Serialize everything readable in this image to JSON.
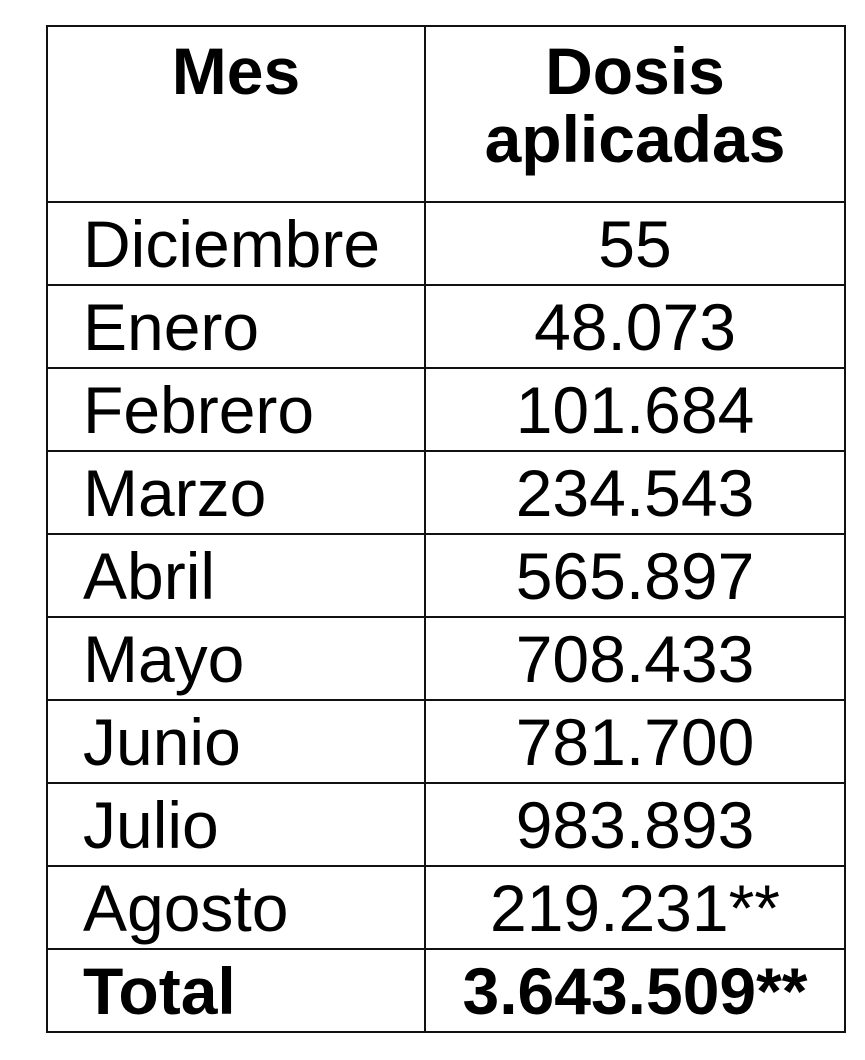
{
  "table": {
    "headers": [
      "Mes",
      "Dosis aplicadas"
    ],
    "rows": [
      {
        "mes": "Diciembre",
        "dosis": "55"
      },
      {
        "mes": "Enero",
        "dosis": "48.073"
      },
      {
        "mes": "Febrero",
        "dosis": "101.684"
      },
      {
        "mes": "Marzo",
        "dosis": "234.543"
      },
      {
        "mes": "Abril",
        "dosis": "565.897"
      },
      {
        "mes": "Mayo",
        "dosis": "708.433"
      },
      {
        "mes": "Junio",
        "dosis": "781.700"
      },
      {
        "mes": "Julio",
        "dosis": "983.893"
      },
      {
        "mes": "Agosto",
        "dosis": "219.231**"
      }
    ],
    "total": {
      "mes": "Total",
      "dosis": "3.643.509**"
    }
  }
}
